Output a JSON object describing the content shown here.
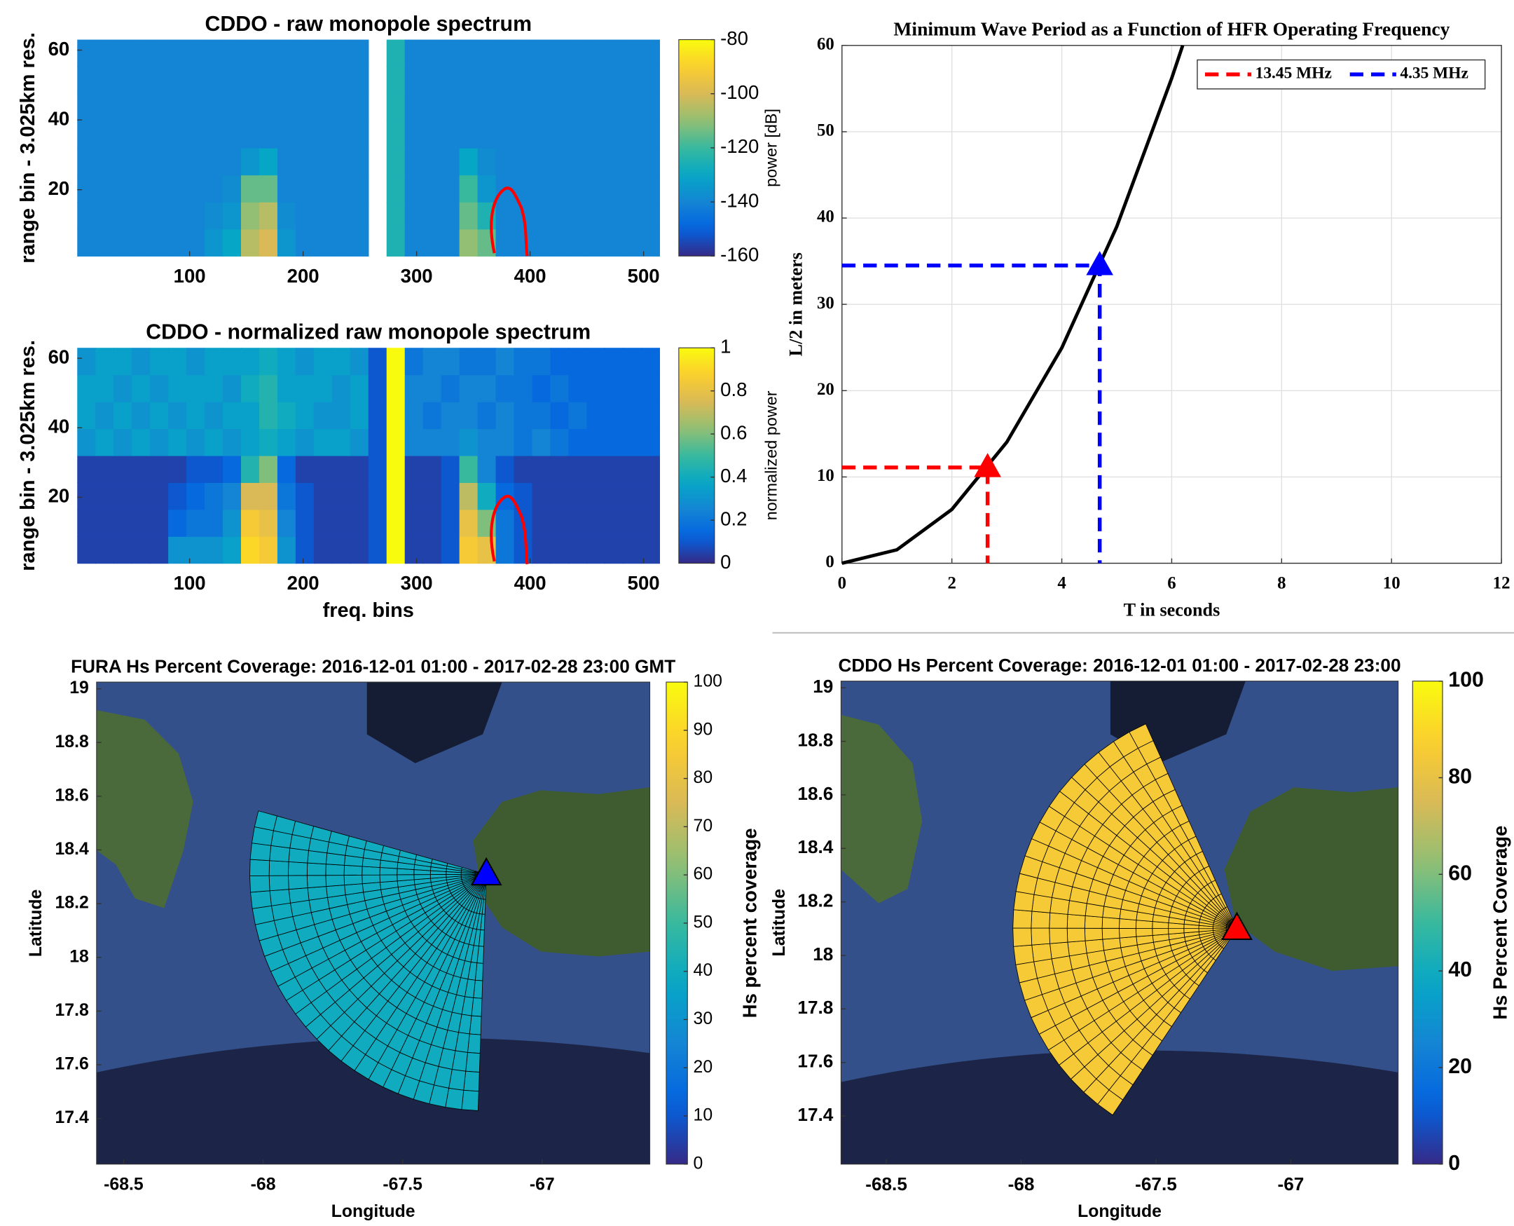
{
  "chart_data": [
    {
      "type": "heatmap",
      "title": "CDDO - raw monopole spectrum",
      "ylabel": "range bin - 3.025km res.",
      "xlim": [
        1,
        514
      ],
      "ylim": [
        1,
        63
      ],
      "xticks": [
        100,
        200,
        300,
        400,
        500
      ],
      "yticks": [
        20,
        40,
        60
      ],
      "colormap": "parula",
      "clim": [
        -160,
        -80
      ],
      "cticks": [
        -80,
        -100,
        -120,
        -140,
        -160
      ],
      "clabel": "power [dB]",
      "z": [
        [
          -140,
          -140,
          -140,
          -140,
          -140,
          -140,
          -140,
          -135,
          -130,
          -105,
          -100,
          -135,
          -140,
          -140,
          -140,
          -140,
          null,
          -125,
          -140,
          -140,
          -140,
          -110,
          -115,
          -140,
          -140,
          -140,
          -140,
          -140,
          -140,
          -140,
          -140,
          -140
        ],
        [
          -140,
          -140,
          -140,
          -140,
          -140,
          -140,
          -140,
          -138,
          -135,
          -110,
          -105,
          -138,
          -140,
          -140,
          -140,
          -140,
          null,
          -125,
          -140,
          -140,
          -140,
          -115,
          -125,
          -140,
          -140,
          -140,
          -140,
          -140,
          -140,
          -140,
          -140,
          -140
        ],
        [
          -140,
          -140,
          -140,
          -140,
          -140,
          -140,
          -140,
          -140,
          -138,
          -115,
          -115,
          -140,
          -140,
          -140,
          -140,
          -140,
          null,
          -125,
          -140,
          -140,
          -140,
          -120,
          -135,
          -140,
          -140,
          -140,
          -140,
          -140,
          -140,
          -140,
          -140,
          -140
        ],
        [
          -140,
          -140,
          -140,
          -140,
          -140,
          -140,
          -140,
          -140,
          -140,
          -135,
          -130,
          -140,
          -140,
          -140,
          -140,
          -140,
          null,
          -125,
          -140,
          -140,
          -140,
          -130,
          -138,
          -140,
          -140,
          -140,
          -140,
          -140,
          -140,
          -140,
          -140,
          -140
        ],
        [
          -140,
          -140,
          -140,
          -140,
          -140,
          -140,
          -140,
          -140,
          -140,
          -140,
          -140,
          -140,
          -140,
          -140,
          -140,
          -140,
          null,
          -125,
          -140,
          -140,
          -140,
          -140,
          -140,
          -140,
          -140,
          -140,
          -140,
          -140,
          -140,
          -140,
          -140,
          -140
        ],
        [
          -140,
          -140,
          -140,
          -140,
          -140,
          -140,
          -140,
          -140,
          -140,
          -140,
          -140,
          -140,
          -140,
          -140,
          -140,
          -140,
          null,
          -125,
          -140,
          -140,
          -140,
          -140,
          -140,
          -140,
          -140,
          -140,
          -140,
          -140,
          -140,
          -140,
          -140,
          -140
        ],
        [
          -140,
          -140,
          -140,
          -140,
          -140,
          -140,
          -140,
          -140,
          -140,
          -140,
          -140,
          -140,
          -140,
          -140,
          -140,
          -140,
          null,
          -125,
          -140,
          -140,
          -140,
          -140,
          -140,
          -140,
          -140,
          -140,
          -140,
          -140,
          -140,
          -140,
          -140,
          -140
        ],
        [
          -140,
          -140,
          -140,
          -140,
          -140,
          -140,
          -140,
          -140,
          -140,
          -140,
          -140,
          -140,
          -140,
          -140,
          -140,
          -140,
          null,
          -125,
          -140,
          -140,
          -140,
          -140,
          -140,
          -140,
          -140,
          -140,
          -140,
          -140,
          -140,
          -140,
          -140,
          -140
        ]
      ]
    },
    {
      "type": "heatmap",
      "title": "CDDO - normalized raw monopole spectrum",
      "ylabel": "range bin - 3.025km res.",
      "xlabel": "freq. bins",
      "xlim": [
        1,
        514
      ],
      "ylim": [
        1,
        63
      ],
      "xticks": [
        100,
        200,
        300,
        400,
        500
      ],
      "yticks": [
        20,
        40,
        60
      ],
      "colormap": "parula",
      "clim": [
        0,
        1
      ],
      "cticks": [
        0,
        0.2,
        0.4,
        0.6,
        0.8,
        1
      ],
      "clabel": "normalized power",
      "z": [
        [
          0.05,
          0.05,
          0.05,
          0.05,
          0.05,
          0.3,
          0.3,
          0.3,
          0.35,
          0.9,
          0.85,
          0.3,
          0.1,
          0.05,
          0.05,
          0.05,
          0.1,
          1,
          0.05,
          0.05,
          0.1,
          0.85,
          0.8,
          0.2,
          0.1,
          0.05,
          0.05,
          0.05,
          0.05,
          0.05,
          0.05,
          0.05
        ],
        [
          0.05,
          0.05,
          0.05,
          0.05,
          0.05,
          0.15,
          0.2,
          0.2,
          0.3,
          0.85,
          0.8,
          0.25,
          0.1,
          0.05,
          0.05,
          0.05,
          0.1,
          1,
          0.05,
          0.05,
          0.1,
          0.8,
          0.6,
          0.2,
          0.1,
          0.05,
          0.05,
          0.05,
          0.05,
          0.05,
          0.05,
          0.05
        ],
        [
          0.05,
          0.05,
          0.05,
          0.05,
          0.05,
          0.1,
          0.15,
          0.2,
          0.25,
          0.75,
          0.75,
          0.2,
          0.1,
          0.05,
          0.05,
          0.05,
          0.1,
          1,
          0.05,
          0.05,
          0.1,
          0.7,
          0.4,
          0.15,
          0.1,
          0.05,
          0.05,
          0.05,
          0.05,
          0.05,
          0.05,
          0.05
        ],
        [
          0.05,
          0.05,
          0.05,
          0.05,
          0.05,
          0.05,
          0.1,
          0.1,
          0.15,
          0.45,
          0.6,
          0.15,
          0.05,
          0.05,
          0.05,
          0.05,
          0.1,
          1,
          0.05,
          0.05,
          0.1,
          0.5,
          0.25,
          0.1,
          0.05,
          0.05,
          0.05,
          0.05,
          0.05,
          0.05,
          0.05,
          0.05
        ],
        [
          0.3,
          0.35,
          0.3,
          0.35,
          0.3,
          0.35,
          0.3,
          0.35,
          0.3,
          0.35,
          0.4,
          0.35,
          0.3,
          0.35,
          0.35,
          0.3,
          0.1,
          1,
          0.25,
          0.25,
          0.25,
          0.3,
          0.25,
          0.25,
          0.2,
          0.25,
          0.2,
          0.15,
          0.15,
          0.15,
          0.15,
          0.15
        ],
        [
          0.35,
          0.3,
          0.35,
          0.3,
          0.35,
          0.3,
          0.35,
          0.3,
          0.35,
          0.35,
          0.45,
          0.4,
          0.35,
          0.3,
          0.3,
          0.35,
          0.1,
          1,
          0.25,
          0.2,
          0.25,
          0.25,
          0.2,
          0.25,
          0.2,
          0.2,
          0.15,
          0.2,
          0.15,
          0.15,
          0.15,
          0.15
        ],
        [
          0.35,
          0.35,
          0.3,
          0.35,
          0.3,
          0.35,
          0.35,
          0.35,
          0.3,
          0.4,
          0.45,
          0.35,
          0.35,
          0.35,
          0.3,
          0.35,
          0.1,
          1,
          0.25,
          0.25,
          0.2,
          0.25,
          0.25,
          0.2,
          0.2,
          0.15,
          0.2,
          0.15,
          0.15,
          0.15,
          0.15,
          0.15
        ],
        [
          0.3,
          0.35,
          0.35,
          0.3,
          0.35,
          0.35,
          0.3,
          0.35,
          0.35,
          0.35,
          0.4,
          0.35,
          0.3,
          0.35,
          0.35,
          0.3,
          0.1,
          1,
          0.2,
          0.25,
          0.25,
          0.2,
          0.2,
          0.25,
          0.2,
          0.2,
          0.15,
          0.15,
          0.15,
          0.15,
          0.15,
          0.15
        ]
      ]
    },
    {
      "type": "line",
      "title": "Minimum Wave Period as a Function of HFR Operating Frequency",
      "xlabel": "T in seconds",
      "ylabel": "L/2 in meters",
      "xlim": [
        0,
        12
      ],
      "ylim": [
        0,
        60
      ],
      "xticks": [
        0,
        2,
        4,
        6,
        8,
        10,
        12
      ],
      "yticks": [
        0,
        10,
        20,
        30,
        40,
        50,
        60
      ],
      "grid": true,
      "legend": "upper right",
      "series": [
        {
          "color": "#000000",
          "linestyle": "-",
          "x": [
            0,
            1,
            2,
            3,
            4,
            5,
            6,
            6.2
          ],
          "values": [
            0,
            1.56,
            6.24,
            14.04,
            24.96,
            39,
            56.2,
            60
          ]
        },
        {
          "name": "13.45 MHz",
          "color": "#ff0000",
          "linestyle": "--",
          "marker": "^",
          "droplines": true,
          "x": [
            2.65
          ],
          "values": [
            11.1
          ]
        },
        {
          "name": "4.35 MHz",
          "color": "#0000ff",
          "linestyle": "--",
          "marker": "^",
          "droplines": true,
          "x": [
            4.69
          ],
          "values": [
            34.5
          ]
        }
      ]
    },
    {
      "type": "map",
      "title": "FURA Hs Percent Coverage: 2016-12-01 01:00 - 2017-02-28 23:00 GMT",
      "xlabel": "Longitude",
      "ylabel": "Latitude",
      "xlim": [
        -68.597,
        -66.614
      ],
      "ylim": [
        17.23,
        19.025
      ],
      "xticks": [
        -68.5,
        -68,
        -67.5,
        -67
      ],
      "yticks": [
        17.4,
        17.6,
        17.8,
        18,
        18.2,
        18.4,
        18.6,
        18.8,
        19
      ],
      "site": {
        "lon": -67.2,
        "lat": 18.31,
        "color": "#0000ff"
      },
      "coverage": 40,
      "colormap": "parula",
      "clim": [
        0,
        100
      ],
      "cticks": [
        0,
        10,
        20,
        30,
        40,
        50,
        60,
        70,
        80,
        90,
        100
      ],
      "clabel": "Hs percent coverage"
    },
    {
      "type": "map",
      "title": "CDDO Hs Percent Coverage: 2016-12-01 01:00 - 2017-02-28 23:00",
      "xlabel": "Longitude",
      "ylabel": "Latitude",
      "xlim": [
        -68.668,
        -66.602
      ],
      "ylim": [
        17.22,
        19.025
      ],
      "xticks": [
        -68.5,
        -68,
        -67.5,
        -67
      ],
      "yticks": [
        17.4,
        17.6,
        17.8,
        18,
        18.2,
        18.4,
        18.6,
        18.8,
        19
      ],
      "site": {
        "lon": -67.2,
        "lat": 18.1,
        "color": "#ff0000"
      },
      "coverage": 85,
      "colormap": "parula",
      "clim": [
        0,
        100
      ],
      "cticks": [
        0,
        20,
        40,
        60,
        80,
        100
      ],
      "clabel": "Hs Percent Coverage"
    }
  ]
}
